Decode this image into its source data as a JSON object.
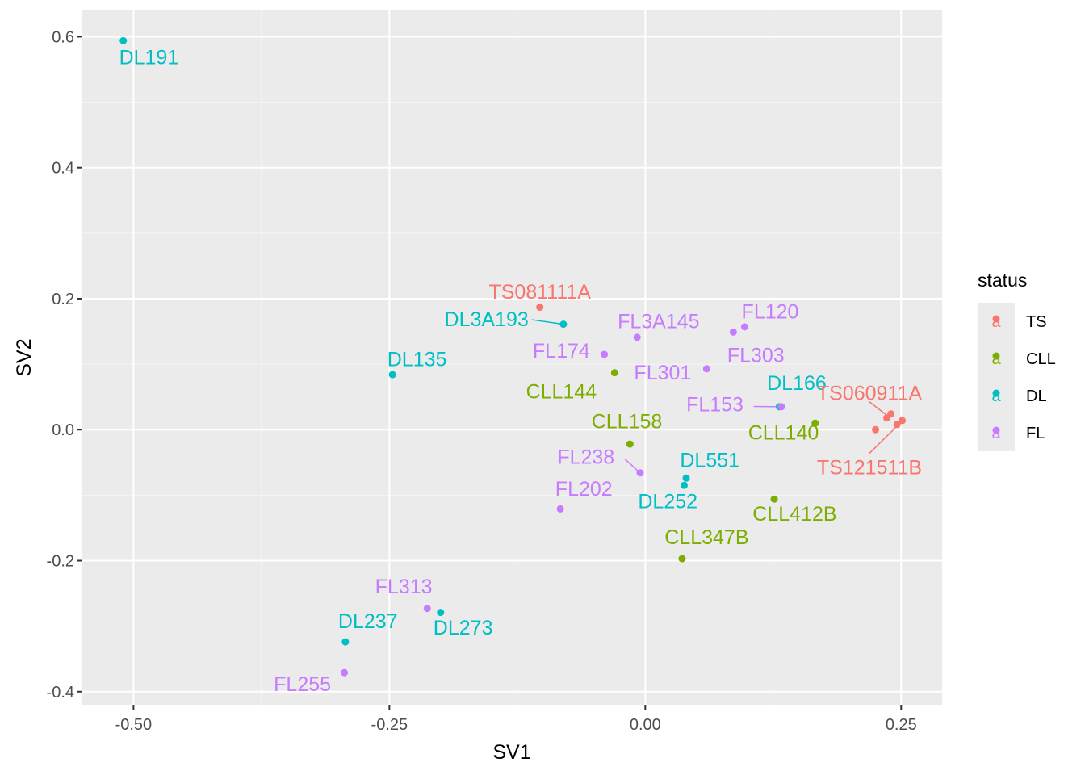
{
  "chart_data": {
    "type": "scatter",
    "xlabel": "SV1",
    "ylabel": "SV2",
    "xlim": [
      -0.55,
      0.29
    ],
    "ylim": [
      -0.42,
      0.64
    ],
    "x_ticks": [
      {
        "value": -0.5,
        "label": "-0.50"
      },
      {
        "value": -0.25,
        "label": "-0.25"
      },
      {
        "value": 0.0,
        "label": "0.00"
      },
      {
        "value": 0.25,
        "label": "0.25"
      }
    ],
    "y_ticks": [
      {
        "value": -0.4,
        "label": "-0.4"
      },
      {
        "value": -0.2,
        "label": "-0.2"
      },
      {
        "value": 0.0,
        "label": "0.0"
      },
      {
        "value": 0.2,
        "label": "0.2"
      },
      {
        "value": 0.4,
        "label": "0.4"
      },
      {
        "value": 0.6,
        "label": "0.6"
      }
    ],
    "grid": true,
    "legend": {
      "title": "status",
      "position": "right",
      "key_glyph": "a",
      "entries": [
        {
          "name": "TS",
          "color": "#F8766D"
        },
        {
          "name": "CLL",
          "color": "#7CAE00"
        },
        {
          "name": "DL",
          "color": "#00BFC4"
        },
        {
          "name": "FL",
          "color": "#C77CFF"
        }
      ]
    },
    "points": [
      {
        "x": -0.51,
        "y": 0.594,
        "status": "DL",
        "label": "DL191",
        "lx": -0.485,
        "ly": 0.558,
        "anchor": "middle"
      },
      {
        "x": -0.103,
        "y": 0.187,
        "status": "TS",
        "label": "TS081111A",
        "lx": -0.103,
        "ly": 0.2,
        "anchor": "middle"
      },
      {
        "x": -0.08,
        "y": 0.161,
        "status": "DL",
        "label": "DL3A193",
        "lx": -0.114,
        "ly": 0.158,
        "anchor": "end",
        "segment": true
      },
      {
        "x": -0.247,
        "y": 0.084,
        "status": "DL",
        "label": "DL135",
        "lx": -0.223,
        "ly": 0.097,
        "anchor": "middle"
      },
      {
        "x": -0.008,
        "y": 0.141,
        "status": "FL",
        "label": "FL3A145",
        "lx": 0.013,
        "ly": 0.155,
        "anchor": "middle"
      },
      {
        "x": 0.097,
        "y": 0.157,
        "status": "FL",
        "label": "FL120",
        "lx": 0.122,
        "ly": 0.17,
        "anchor": "middle"
      },
      {
        "x": 0.086,
        "y": 0.149,
        "status": "FL",
        "label": "FL303",
        "lx": 0.108,
        "ly": 0.103,
        "anchor": "middle"
      },
      {
        "x": -0.04,
        "y": 0.115,
        "status": "FL",
        "label": "FL174",
        "lx": -0.082,
        "ly": 0.11,
        "anchor": "middle"
      },
      {
        "x": -0.03,
        "y": 0.087,
        "status": "CLL",
        "label": "CLL144",
        "lx": -0.082,
        "ly": 0.048,
        "anchor": "middle"
      },
      {
        "x": 0.06,
        "y": 0.093,
        "status": "FL",
        "label": "FL301",
        "lx": 0.017,
        "ly": 0.077,
        "anchor": "middle"
      },
      {
        "x": 0.131,
        "y": 0.035,
        "status": "DL",
        "label": "DL166",
        "lx": 0.148,
        "ly": 0.061,
        "anchor": "middle"
      },
      {
        "x": 0.133,
        "y": 0.035,
        "status": "FL",
        "label": "FL153",
        "lx": 0.068,
        "ly": 0.028,
        "anchor": "middle",
        "segment": true
      },
      {
        "x": 0.166,
        "y": 0.01,
        "status": "CLL",
        "label": "CLL140",
        "lx": 0.135,
        "ly": -0.015,
        "anchor": "middle"
      },
      {
        "x": 0.225,
        "y": 0.0,
        "status": "TS",
        "label": "TS060911A",
        "lx": 0.219,
        "ly": 0.045,
        "anchor": "middle",
        "sx": 0.236,
        "sy": 0.022
      },
      {
        "x": 0.236,
        "y": 0.018,
        "status": "TS",
        "label": "",
        "lx": 0,
        "ly": 0,
        "anchor": "middle"
      },
      {
        "x": 0.24,
        "y": 0.024,
        "status": "TS",
        "label": "",
        "lx": 0,
        "ly": 0,
        "anchor": "middle"
      },
      {
        "x": 0.246,
        "y": 0.008,
        "status": "TS",
        "label": "",
        "lx": 0,
        "ly": 0,
        "anchor": "middle"
      },
      {
        "x": 0.251,
        "y": 0.014,
        "status": "TS",
        "label": "TS121511B",
        "lx": 0.219,
        "ly": -0.068,
        "anchor": "middle",
        "sx": 0.249,
        "sy": 0.01
      },
      {
        "x": -0.015,
        "y": -0.022,
        "status": "CLL",
        "label": "CLL158",
        "lx": -0.018,
        "ly": 0.002,
        "anchor": "middle"
      },
      {
        "x": -0.005,
        "y": -0.066,
        "status": "FL",
        "label": "FL238",
        "lx": -0.058,
        "ly": -0.052,
        "anchor": "middle",
        "segment": true
      },
      {
        "x": 0.04,
        "y": -0.074,
        "status": "DL",
        "label": "DL551",
        "lx": 0.063,
        "ly": -0.057,
        "anchor": "middle"
      },
      {
        "x": 0.038,
        "y": -0.085,
        "status": "DL",
        "label": "DL252",
        "lx": 0.022,
        "ly": -0.12,
        "anchor": "middle"
      },
      {
        "x": -0.083,
        "y": -0.121,
        "status": "FL",
        "label": "FL202",
        "lx": -0.06,
        "ly": -0.101,
        "anchor": "middle"
      },
      {
        "x": 0.126,
        "y": -0.106,
        "status": "CLL",
        "label": "CLL412B",
        "lx": 0.146,
        "ly": -0.139,
        "anchor": "middle"
      },
      {
        "x": 0.036,
        "y": -0.197,
        "status": "CLL",
        "label": "CLL347B",
        "lx": 0.06,
        "ly": -0.175,
        "anchor": "middle"
      },
      {
        "x": -0.213,
        "y": -0.273,
        "status": "FL",
        "label": "FL313",
        "lx": -0.236,
        "ly": -0.25,
        "anchor": "middle"
      },
      {
        "x": -0.2,
        "y": -0.279,
        "status": "DL",
        "label": "DL273",
        "lx": -0.178,
        "ly": -0.313,
        "anchor": "middle"
      },
      {
        "x": -0.293,
        "y": -0.324,
        "status": "DL",
        "label": "DL237",
        "lx": -0.271,
        "ly": -0.303,
        "anchor": "middle"
      },
      {
        "x": -0.294,
        "y": -0.371,
        "status": "FL",
        "label": "FL255",
        "lx": -0.335,
        "ly": -0.399,
        "anchor": "middle"
      }
    ]
  }
}
